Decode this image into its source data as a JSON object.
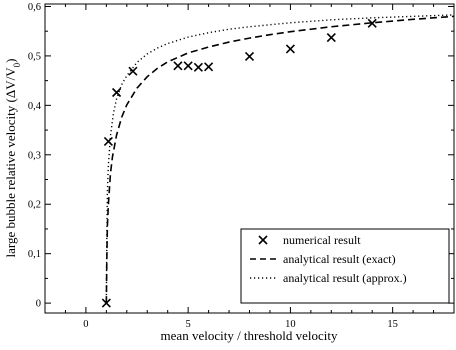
{
  "chart_data": {
    "type": "scatter",
    "xlabel": "mean velocity / threshold velocity",
    "ylabel_main": "large bubble relative velocity (ΔV/V",
    "ylabel_sub": "0",
    "ylabel_close": ")",
    "xlim": [
      -2,
      18
    ],
    "ylim": [
      -0.02,
      0.605
    ],
    "x_ticks": [
      0,
      5,
      10,
      15
    ],
    "x_tick_labels": [
      "0",
      "5",
      "10",
      "15"
    ],
    "y_ticks": [
      0,
      0.1,
      0.2,
      0.3,
      0.4,
      0.5,
      0.6
    ],
    "y_tick_labels": [
      "0",
      "0,1",
      "0,2",
      "0,3",
      "0,4",
      "0,5",
      "0,6"
    ],
    "grid": false,
    "legend_position": "bottom-right",
    "series": [
      {
        "name": "numerical result",
        "kind": "points",
        "marker": "x",
        "x": [
          1.0,
          1.1,
          1.5,
          2.3,
          4.5,
          5.0,
          5.5,
          6.0,
          8.0,
          10.0,
          12.0,
          14.0
        ],
        "y": [
          0.0,
          0.327,
          0.426,
          0.469,
          0.48,
          0.48,
          0.477,
          0.478,
          0.499,
          0.514,
          0.537,
          0.566
        ]
      },
      {
        "name": "analytical result (exact)",
        "kind": "line",
        "dash": "dashed",
        "x": [
          1.0,
          1.02,
          1.05,
          1.1,
          1.2,
          1.3,
          1.5,
          1.75,
          2.0,
          2.5,
          3.0,
          3.5,
          4.0,
          5.0,
          6.0,
          7.0,
          8.0,
          9.0,
          10.0,
          12.0,
          14.0,
          16.0,
          18.0
        ],
        "y": [
          0.0,
          0.08,
          0.155,
          0.2,
          0.262,
          0.296,
          0.34,
          0.376,
          0.401,
          0.435,
          0.458,
          0.475,
          0.488,
          0.506,
          0.518,
          0.528,
          0.536,
          0.543,
          0.549,
          0.559,
          0.567,
          0.574,
          0.58
        ]
      },
      {
        "name": "analytical result (approx.)",
        "kind": "line",
        "dash": "dotted",
        "x": [
          1.0,
          1.02,
          1.05,
          1.1,
          1.2,
          1.35,
          1.5,
          1.75,
          2.0,
          2.5,
          3.0,
          3.5,
          4.0,
          5.0,
          6.0,
          7.0,
          8.0,
          10.0,
          12.0,
          14.0,
          16.0,
          18.0
        ],
        "y": [
          0.0,
          0.12,
          0.225,
          0.28,
          0.338,
          0.385,
          0.413,
          0.442,
          0.46,
          0.487,
          0.504,
          0.516,
          0.525,
          0.538,
          0.547,
          0.554,
          0.559,
          0.567,
          0.573,
          0.577,
          0.58,
          0.583
        ]
      }
    ]
  }
}
